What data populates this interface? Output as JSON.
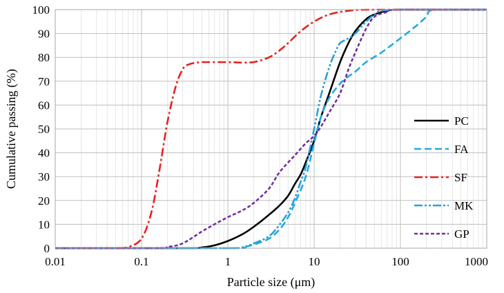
{
  "chart_data": {
    "type": "line",
    "title": "",
    "xlabel": "Particle size (μm)",
    "ylabel": "Cumulative passing (%)",
    "x_scale": "log",
    "xlim": [
      0.01,
      1000
    ],
    "ylim": [
      0,
      100
    ],
    "grid": true,
    "legend_position": "right",
    "x_ticks": [
      0.01,
      0.1,
      1,
      10,
      100,
      1000
    ],
    "x_tick_labels": [
      "0.01",
      "0.1",
      "1",
      "10",
      "100",
      "1000"
    ],
    "y_ticks": [
      0,
      10,
      20,
      30,
      40,
      50,
      60,
      70,
      80,
      90,
      100
    ],
    "y_tick_labels": [
      "0",
      "10",
      "20",
      "30",
      "40",
      "50",
      "60",
      "70",
      "80",
      "90",
      "100"
    ],
    "series": [
      {
        "name": "PC",
        "color": "#000000",
        "dash": "solid",
        "points": [
          [
            0.01,
            0
          ],
          [
            0.3,
            0
          ],
          [
            0.5,
            0.3
          ],
          [
            0.7,
            1.2
          ],
          [
            1,
            3
          ],
          [
            1.5,
            6
          ],
          [
            2,
            9
          ],
          [
            3,
            14
          ],
          [
            4,
            18
          ],
          [
            5,
            22
          ],
          [
            6,
            27
          ],
          [
            7,
            31
          ],
          [
            8,
            36
          ],
          [
            10,
            45
          ],
          [
            12,
            55
          ],
          [
            15,
            65
          ],
          [
            20,
            78
          ],
          [
            25,
            86
          ],
          [
            30,
            91
          ],
          [
            40,
            96
          ],
          [
            50,
            98
          ],
          [
            70,
            99.5
          ],
          [
            100,
            100
          ],
          [
            1000,
            100
          ]
        ]
      },
      {
        "name": "FA",
        "color": "#22aae2",
        "dash": "long-dash",
        "points": [
          [
            0.01,
            0
          ],
          [
            1,
            0
          ],
          [
            1.5,
            0.5
          ],
          [
            2,
            1.5
          ],
          [
            3,
            4
          ],
          [
            4,
            8
          ],
          [
            5,
            13
          ],
          [
            6,
            19
          ],
          [
            8,
            30
          ],
          [
            10,
            44
          ],
          [
            12,
            55
          ],
          [
            15,
            63
          ],
          [
            20,
            69
          ],
          [
            25,
            72
          ],
          [
            30,
            74
          ],
          [
            40,
            78
          ],
          [
            60,
            82
          ],
          [
            100,
            88
          ],
          [
            150,
            93
          ],
          [
            200,
            97
          ],
          [
            250,
            100
          ],
          [
            1000,
            100
          ]
        ]
      },
      {
        "name": "SF",
        "color": "#e8201c",
        "dash": "dash-dot",
        "points": [
          [
            0.01,
            0
          ],
          [
            0.05,
            0
          ],
          [
            0.07,
            0.5
          ],
          [
            0.1,
            4
          ],
          [
            0.13,
            15
          ],
          [
            0.16,
            32
          ],
          [
            0.2,
            53
          ],
          [
            0.25,
            68
          ],
          [
            0.3,
            75
          ],
          [
            0.35,
            77
          ],
          [
            0.5,
            78
          ],
          [
            1,
            78
          ],
          [
            1.5,
            77.8
          ],
          [
            2,
            78
          ],
          [
            3,
            80
          ],
          [
            4,
            83
          ],
          [
            5,
            86
          ],
          [
            7,
            91
          ],
          [
            10,
            95
          ],
          [
            15,
            98
          ],
          [
            25,
            99.5
          ],
          [
            50,
            100
          ],
          [
            1000,
            100
          ]
        ]
      },
      {
        "name": "MK",
        "color": "#2a9fd6",
        "dash": "dash-dot-dot",
        "points": [
          [
            0.01,
            0
          ],
          [
            1,
            0
          ],
          [
            1.5,
            0.5
          ],
          [
            2,
            2
          ],
          [
            3,
            5
          ],
          [
            4,
            10
          ],
          [
            5,
            15
          ],
          [
            6,
            21
          ],
          [
            7,
            28
          ],
          [
            8,
            34
          ],
          [
            10,
            50
          ],
          [
            12,
            64
          ],
          [
            15,
            76
          ],
          [
            18,
            83
          ],
          [
            20,
            86
          ],
          [
            25,
            88
          ],
          [
            30,
            90
          ],
          [
            40,
            95
          ],
          [
            50,
            98
          ],
          [
            60,
            99.5
          ],
          [
            100,
            100
          ],
          [
            1000,
            100
          ]
        ]
      },
      {
        "name": "GP",
        "color": "#7030a0",
        "dash": "short-dash",
        "points": [
          [
            0.01,
            0
          ],
          [
            0.15,
            0
          ],
          [
            0.2,
            0.5
          ],
          [
            0.3,
            2
          ],
          [
            0.5,
            7
          ],
          [
            0.7,
            10
          ],
          [
            1,
            13
          ],
          [
            1.5,
            16
          ],
          [
            2,
            19
          ],
          [
            3,
            25
          ],
          [
            4,
            32
          ],
          [
            6,
            39
          ],
          [
            8,
            44
          ],
          [
            10,
            47
          ],
          [
            12,
            51
          ],
          [
            15,
            57
          ],
          [
            20,
            65
          ],
          [
            25,
            75
          ],
          [
            30,
            82
          ],
          [
            40,
            92
          ],
          [
            50,
            97
          ],
          [
            70,
            99
          ],
          [
            100,
            100
          ],
          [
            1000,
            100
          ]
        ]
      }
    ]
  }
}
